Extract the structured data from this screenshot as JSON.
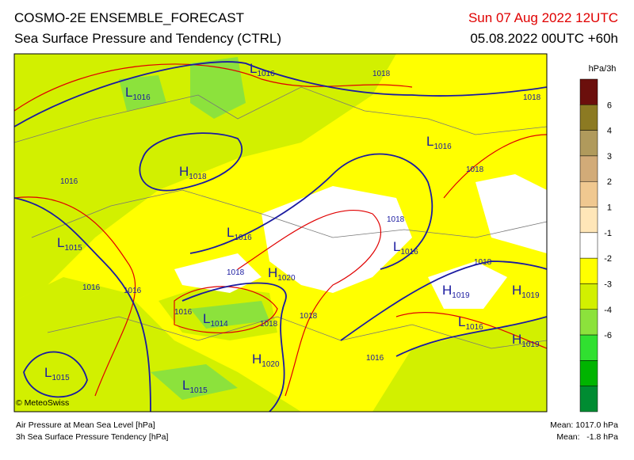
{
  "header": {
    "title": "COSMO-2E ENSEMBLE_FORECAST",
    "subtitle": "Sea Surface Pressure and Tendency (CTRL)",
    "valid_time": "Sun 07 Aug 2022 12UTC",
    "run": "05.08.2022 00UTC +60h"
  },
  "legend": {
    "unit": "hPa/3h",
    "colors": [
      "#6b0f0c",
      "#8c7a22",
      "#b09a5c",
      "#d2ab78",
      "#f0c890",
      "#ffe6b8",
      "#ffffff",
      "#ffff00",
      "#d2f000",
      "#8ce23c",
      "#30e030",
      "#00b400",
      "#008c32"
    ],
    "labels": [
      "6",
      "4",
      "3",
      "2",
      "1",
      "-1",
      "-2",
      "-3",
      "-4",
      "-6"
    ]
  },
  "systems": [
    {
      "type": "L",
      "value": "1016"
    },
    {
      "type": "L",
      "value": "1016"
    },
    {
      "type": "H",
      "value": "1018"
    },
    {
      "type": "L",
      "value": "1016"
    },
    {
      "type": "L",
      "value": "1016"
    },
    {
      "type": "L",
      "value": "1015"
    },
    {
      "type": "L",
      "value": "1016"
    },
    {
      "type": "H",
      "value": "1020"
    },
    {
      "type": "H",
      "value": "1019"
    },
    {
      "type": "H",
      "value": "1019"
    },
    {
      "type": "L",
      "value": "1014"
    },
    {
      "type": "L",
      "value": "1016"
    },
    {
      "type": "H",
      "value": "1019"
    },
    {
      "type": "H",
      "value": "1020"
    },
    {
      "type": "L",
      "value": "1015"
    },
    {
      "type": "L",
      "value": "1015"
    }
  ],
  "isobar_labels": [
    "1018",
    "1018",
    "1016",
    "1018",
    "1018",
    "1018",
    "1018",
    "1016",
    "1016",
    "1016",
    "1018",
    "1018",
    "1016"
  ],
  "footer": {
    "copyright": "© MeteoSwiss",
    "line1": "Air Pressure at Mean Sea Level [hPa]",
    "line2": "3h Sea Surface Pressure Tendency [hPa]",
    "mean_pressure": "Mean: 1017.0 hPa",
    "mean_tendency": "Mean:   -1.8 hPa"
  }
}
